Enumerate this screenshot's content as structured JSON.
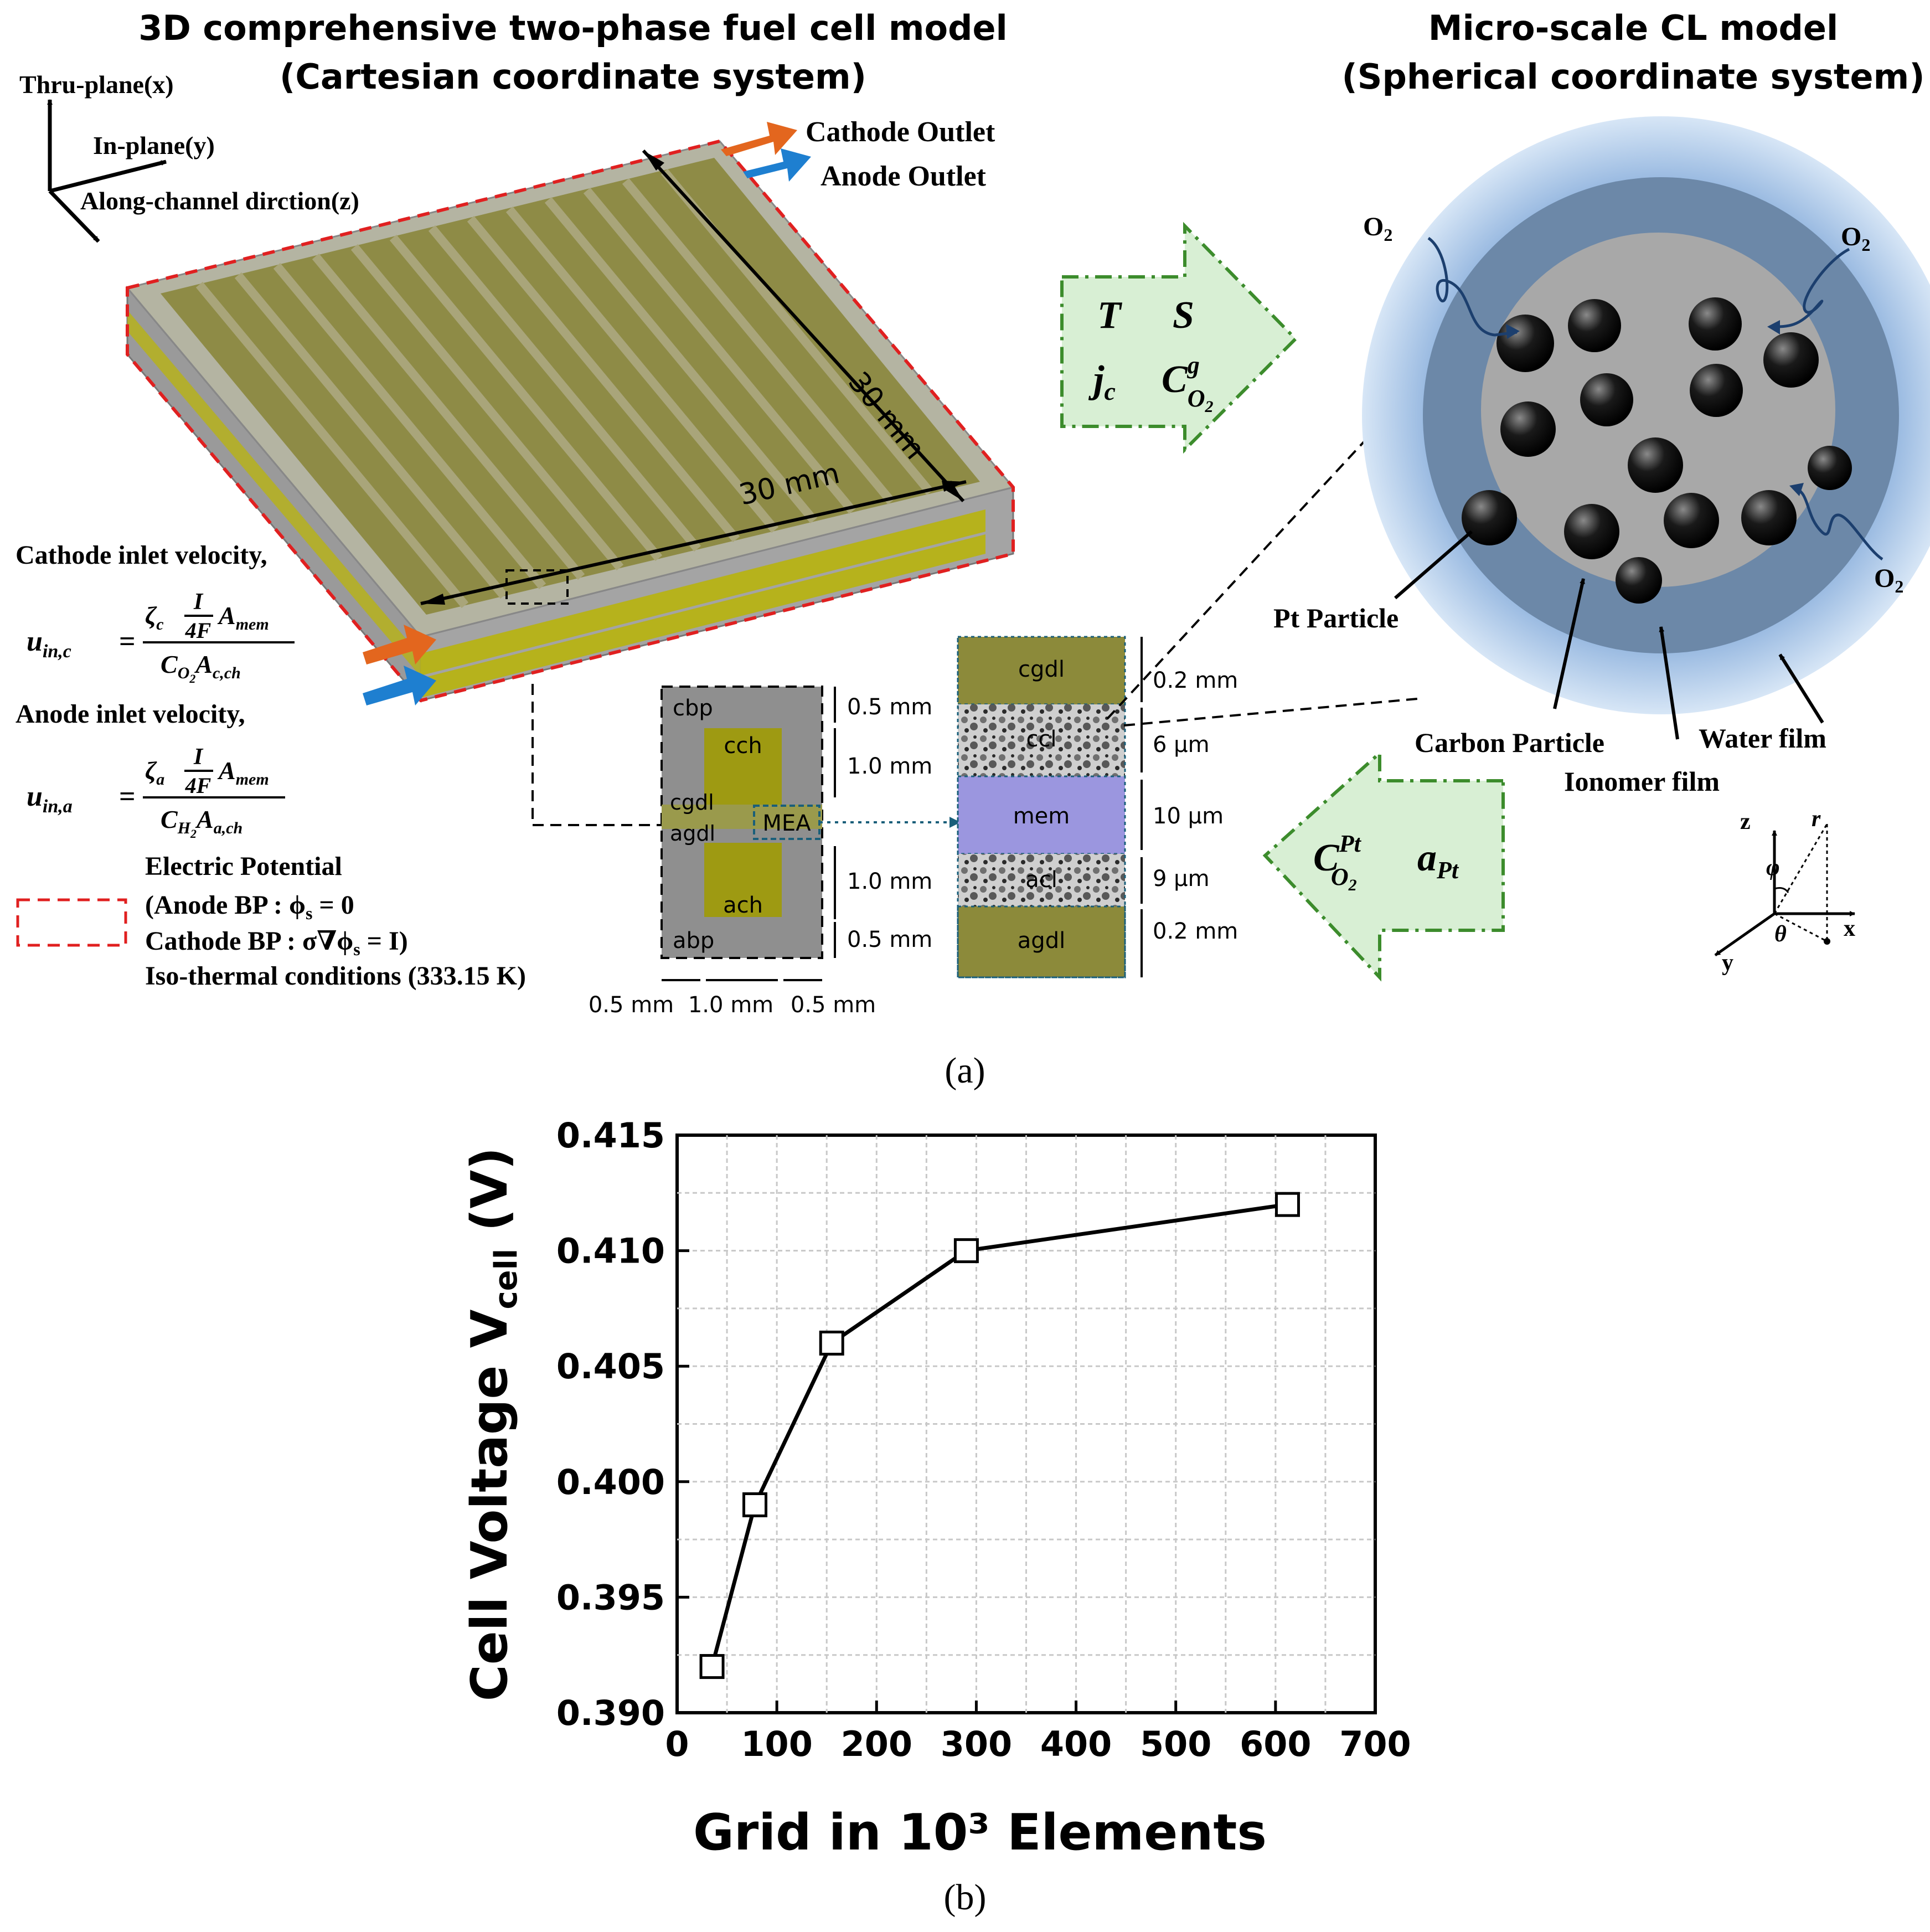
{
  "panel_a": {
    "left_title": [
      "3D comprehensive two-phase fuel cell model",
      "(Cartesian coordinate system)"
    ],
    "right_title": [
      "Micro-scale CL model",
      "(Spherical coordinate system)"
    ],
    "axes": {
      "thru": "Thru-plane(x)",
      "in": "In-plane(y)",
      "along": "Along-channel dirction(z)"
    },
    "outlets": {
      "cathode": "Cathode Outlet",
      "anode": "Anode Outlet"
    },
    "dims": {
      "len1": "30 mm",
      "len2": "30 mm"
    },
    "cathode_inlet": {
      "label": "Cathode inlet velocity,",
      "lhs": "u",
      "lhs_sub": "in,c",
      "coef": "ζ",
      "coef_sub": "c",
      "frac_num": "I",
      "frac_den": "4F",
      "area": "A",
      "area_sub": "mem",
      "den_c": "C",
      "den_c_sub": "O",
      "den_c_subsub": "2",
      "den_a": "A",
      "den_a_sub": "c,ch"
    },
    "anode_inlet": {
      "label": "Anode inlet velocity,",
      "lhs": "u",
      "lhs_sub": "in,a",
      "coef": "ζ",
      "coef_sub": "a",
      "frac_num": "I",
      "frac_den": "4F",
      "area": "A",
      "area_sub": "mem",
      "den_c": "C",
      "den_c_sub": "H",
      "den_c_subsub": "2",
      "den_a": "A",
      "den_a_sub": "a,ch"
    },
    "boundary": {
      "title": "Electric Potential",
      "anode_bp": "(Anode BP : ϕ",
      "anode_bp_sub": "s",
      "anode_bp_rhs": " = 0",
      "cathode_bp": "Cathode BP : σ∇ϕ",
      "cathode_bp_sub": "s",
      "cathode_bp_rhs": " = I)",
      "iso": "Iso-thermal conditions (333.15 K)"
    },
    "cross_section": {
      "cbp": "cbp",
      "cch": "cch",
      "cgdl": "cgdl",
      "agdl": "agdl",
      "ach": "ach",
      "abp": "abp",
      "mea": "MEA",
      "h1": "0.5 mm",
      "h2": "1.0 mm",
      "h3": "1.0 mm",
      "h4": "0.5 mm",
      "w1": "0.5 mm",
      "w2": "1.0 mm",
      "w3": "0.5 mm"
    },
    "mea_stack": {
      "layers": [
        "cgdl",
        "ccl",
        "mem",
        "acl",
        "agdl"
      ],
      "thickness": [
        "0.2 mm",
        "6 μm",
        "10 μm",
        "9 μm",
        "0.2 mm"
      ]
    },
    "arrow_right_vars": {
      "T": "T",
      "S": "S",
      "j": "j",
      "j_sub": "c",
      "C": "C",
      "C_sup": "g",
      "C_sub": "O",
      "C_subsub": "2"
    },
    "arrow_left_vars": {
      "C": "C",
      "C_sup": "Pt",
      "C_sub": "O",
      "C_subsub": "2",
      "a": "a",
      "a_sub": "Pt"
    },
    "sphere": {
      "o2": "O",
      "o2_sub": "2",
      "pt_particle": "Pt Particle",
      "carbon_particle": "Carbon Particle",
      "ionomer_film": "Ionomer film",
      "water_film": "Water film"
    },
    "spherical_axes": {
      "z": "z",
      "r": "r",
      "phi": "φ",
      "theta": "θ",
      "x": "x",
      "y": "y"
    },
    "label": "(a)"
  },
  "panel_b": {
    "label": "(b)"
  },
  "chart_data": {
    "type": "line",
    "xlabel": "Grid in 10³ Elements",
    "ylabel": "Cell Voltage V",
    "ylabel_sub": "cell",
    "ylabel_unit": " (V)",
    "xlim": [
      0,
      700
    ],
    "ylim": [
      0.39,
      0.415
    ],
    "x_ticks": [
      "0",
      "100",
      "200",
      "300",
      "400",
      "500",
      "600",
      "700"
    ],
    "y_ticks": [
      "0.390",
      "0.395",
      "0.400",
      "0.405",
      "0.410",
      "0.415"
    ],
    "grid": true,
    "marker": "open-square",
    "series": [
      {
        "x": [
          35,
          78,
          155,
          290,
          612
        ],
        "y": [
          0.392,
          0.399,
          0.406,
          0.41,
          0.412
        ]
      }
    ]
  },
  "colors": {
    "cathode_arrow": "#e3661e",
    "anode_arrow": "#1e7fd0",
    "gdl_olive": "#8c8a3a",
    "channel_yellow": "#9e9a12",
    "membrane": "#9b96df",
    "bp_gray": "#8f8f8f",
    "boundary_red": "#e02020",
    "arrow_green": "#3c8c2c",
    "arrow_fill": "#d8efd4",
    "sphere_outer": "#a9c7ea",
    "sphere_mid": "#6c88a8",
    "sphere_core": "#a8a8a8"
  }
}
